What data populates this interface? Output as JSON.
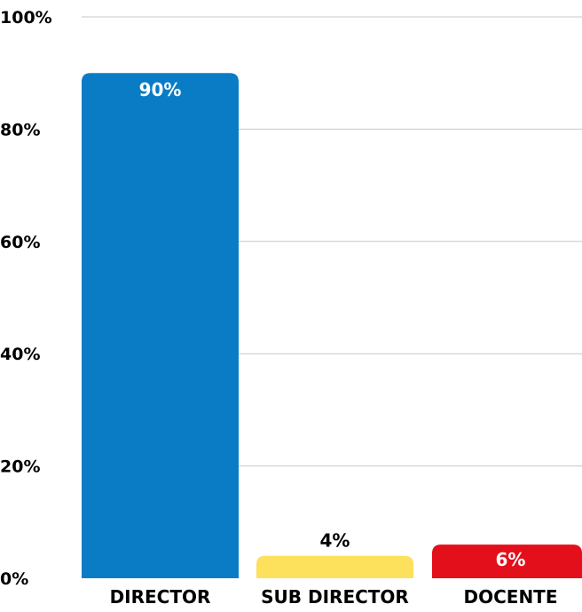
{
  "chart_data": {
    "type": "bar",
    "categories": [
      "DIRECTOR",
      "SUB DIRECTOR",
      "DOCENTE"
    ],
    "values": [
      90,
      4,
      6
    ],
    "value_labels": [
      "90%",
      "4%",
      "6%"
    ],
    "colors": [
      "#0a7cc6",
      "#fde05c",
      "#e30f1b"
    ],
    "label_colors": [
      "#ffffff",
      "#000000",
      "#ffffff"
    ],
    "title": "",
    "xlabel": "",
    "ylabel": "",
    "ylim": [
      0,
      100
    ],
    "yticks": [
      0,
      20,
      40,
      60,
      80,
      100
    ],
    "ytick_labels": [
      "0%",
      "20%",
      "40%",
      "60%",
      "80%",
      "100%"
    ],
    "grid": true,
    "legend": "none"
  }
}
